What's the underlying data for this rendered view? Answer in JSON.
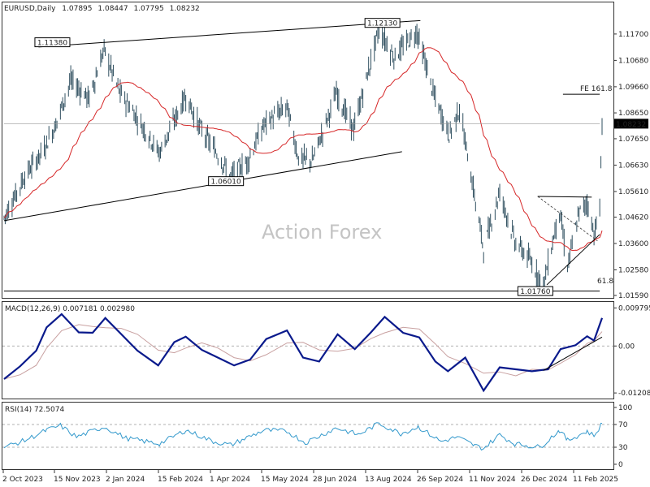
{
  "header": {
    "symbol": "EURUSD,Daily",
    "open": "1.07895",
    "high": "1.08447",
    "low": "1.07795",
    "close": "1.08232"
  },
  "watermark": "Action Forex",
  "colors": {
    "candle": "#2f4f5f",
    "ma": "#d62728",
    "trendline": "#000000",
    "macd": "#0a1a8c",
    "signal": "#c8a0a0",
    "rsi": "#3399cc",
    "grid": "#bbbbbb",
    "price_tag_bg": "#000000"
  },
  "chart_data": [
    {
      "type": "candlestick",
      "panel": "price",
      "ylim": [
        1.0159,
        1.1245
      ],
      "y_ticks": [
        "1.11700",
        "1.10680",
        "1.09660",
        "1.08650",
        "1.07650",
        "1.06630",
        "1.05610",
        "1.04620",
        "1.03600",
        "1.02580",
        "1.01590"
      ],
      "current_price": "1.08232",
      "moving_average": "red",
      "series_anchor_points": [
        [
          "2023-10-02",
          1.046
        ],
        [
          "2023-10-20",
          1.062
        ],
        [
          "2023-11-05",
          1.072
        ],
        [
          "2023-11-15",
          1.081
        ],
        [
          "2023-11-29",
          1.099
        ],
        [
          "2023-12-15",
          1.092
        ],
        [
          "2023-12-28",
          1.111
        ],
        [
          "2024-01-10",
          1.095
        ],
        [
          "2024-01-25",
          1.085
        ],
        [
          "2024-02-14",
          1.071
        ],
        [
          "2024-03-08",
          1.093
        ],
        [
          "2024-03-20",
          1.081
        ],
        [
          "2024-04-01",
          1.073
        ],
        [
          "2024-04-16",
          1.062
        ],
        [
          "2024-05-01",
          1.068
        ],
        [
          "2024-05-15",
          1.082
        ],
        [
          "2024-06-04",
          1.089
        ],
        [
          "2024-06-14",
          1.069
        ],
        [
          "2024-06-26",
          1.068
        ],
        [
          "2024-07-17",
          1.094
        ],
        [
          "2024-08-01",
          1.08
        ],
        [
          "2024-08-23",
          1.119
        ],
        [
          "2024-09-05",
          1.108
        ],
        [
          "2024-09-25",
          1.118
        ],
        [
          "2024-10-10",
          1.093
        ],
        [
          "2024-10-23",
          1.078
        ],
        [
          "2024-11-01",
          1.088
        ],
        [
          "2024-11-15",
          1.052
        ],
        [
          "2024-11-22",
          1.034
        ],
        [
          "2024-12-06",
          1.056
        ],
        [
          "2024-12-19",
          1.037
        ],
        [
          "2025-01-02",
          1.029
        ],
        [
          "2025-01-13",
          1.02
        ],
        [
          "2025-01-27",
          1.049
        ],
        [
          "2025-02-03",
          1.027
        ],
        [
          "2025-02-13",
          1.048
        ],
        [
          "2025-02-20",
          1.052
        ],
        [
          "2025-02-26",
          1.04
        ],
        [
          "2025-03-03",
          1.049
        ],
        [
          "2025-03-05",
          1.082
        ]
      ],
      "annotations": [
        {
          "label": "1.11380",
          "value": 1.1138
        },
        {
          "label": "1.12130",
          "value": 1.1213
        },
        {
          "label": "1.06010",
          "value": 1.0601
        },
        {
          "label": "1.01760",
          "value": 1.0176
        },
        {
          "label": "FE 161.8",
          "value": 1.094
        },
        {
          "label": "61.8",
          "value": 1.0197
        }
      ],
      "lines": [
        {
          "name": "upper channel",
          "from": [
            "2023-11-01",
            1.112
          ],
          "to": [
            "2024-09-28",
            1.1222
          ]
        },
        {
          "name": "lower channel",
          "from": [
            "2023-10-02",
            1.0448
          ],
          "to": [
            "2024-09-12",
            1.0715
          ]
        },
        {
          "name": "FE 161.8 level",
          "from": [
            "2025-01-30",
            1.0937
          ],
          "to": [
            "2025-03-03",
            1.0937
          ]
        },
        {
          "name": "61.8 level",
          "from": [
            "2023-10-02",
            1.0176
          ],
          "to": [
            "2025-03-03",
            1.0176
          ]
        },
        {
          "name": "current price",
          "from": [
            "2023-10-02",
            1.0823
          ],
          "to": [
            "2025-03-03",
            1.0823
          ]
        },
        {
          "name": "triangle top",
          "from": [
            "2025-01-08",
            1.0542
          ],
          "to": [
            "2025-02-24",
            1.0539
          ]
        },
        {
          "name": "triangle support",
          "from": [
            "2025-01-16",
            1.02
          ],
          "to": [
            "2025-03-03",
            1.0395
          ]
        }
      ]
    },
    {
      "type": "line",
      "panel": "macd",
      "label": "MACD(12,26,9) 0.007181 0.002980",
      "ylim": [
        -0.0131,
        0.0105
      ],
      "y_ticks": [
        "0.009795",
        "0.00",
        "-0.012081"
      ],
      "series": [
        {
          "name": "MACD",
          "values": [
            [
              "2023-10-02",
              -0.0085
            ],
            [
              "2023-10-16",
              -0.0052
            ],
            [
              "2023-10-30",
              -0.0012
            ],
            [
              "2023-11-08",
              0.0048
            ],
            [
              "2023-11-21",
              0.0082
            ],
            [
              "2023-12-06",
              0.0035
            ],
            [
              "2023-12-18",
              0.0034
            ],
            [
              "2023-12-29",
              0.0072
            ],
            [
              "2024-01-12",
              0.003
            ],
            [
              "2024-01-26",
              -0.0012
            ],
            [
              "2024-02-13",
              -0.005
            ],
            [
              "2024-02-27",
              0.001
            ],
            [
              "2024-03-08",
              0.0024
            ],
            [
              "2024-03-22",
              -0.001
            ],
            [
              "2024-04-05",
              -0.003
            ],
            [
              "2024-04-19",
              -0.005
            ],
            [
              "2024-05-03",
              -0.0035
            ],
            [
              "2024-05-17",
              0.0018
            ],
            [
              "2024-06-04",
              0.004
            ],
            [
              "2024-06-18",
              -0.003
            ],
            [
              "2024-07-02",
              -0.004
            ],
            [
              "2024-07-18",
              0.003
            ],
            [
              "2024-08-02",
              -0.0008
            ],
            [
              "2024-08-16",
              0.0035
            ],
            [
              "2024-08-28",
              0.0075
            ],
            [
              "2024-09-13",
              0.0034
            ],
            [
              "2024-09-27",
              0.0022
            ],
            [
              "2024-10-11",
              -0.004
            ],
            [
              "2024-10-22",
              -0.0065
            ],
            [
              "2024-11-06",
              -0.003
            ],
            [
              "2024-11-22",
              -0.0115
            ],
            [
              "2024-12-06",
              -0.0055
            ],
            [
              "2024-12-20",
              -0.006
            ],
            [
              "2025-01-03",
              -0.0065
            ],
            [
              "2025-01-17",
              -0.006
            ],
            [
              "2025-01-28",
              -0.0008
            ],
            [
              "2025-02-10",
              0.0002
            ],
            [
              "2025-02-20",
              0.0025
            ],
            [
              "2025-02-26",
              0.0014
            ],
            [
              "2025-03-05",
              0.0072
            ]
          ]
        },
        {
          "name": "Signal",
          "values": "smoothed MACD (0.002980 latest)"
        }
      ]
    },
    {
      "type": "line",
      "panel": "rsi",
      "label": "RSI(14) 72.5074",
      "ylim": [
        0,
        100
      ],
      "y_ticks": [
        "100",
        "70",
        "30",
        "0"
      ],
      "levels": [
        70,
        30
      ],
      "series": [
        {
          "name": "RSI",
          "values": [
            [
              "2023-10-02",
              30
            ],
            [
              "2023-10-20",
              42
            ],
            [
              "2023-11-08",
              60
            ],
            [
              "2023-11-20",
              68
            ],
            [
              "2023-12-04",
              48
            ],
            [
              "2023-12-28",
              66
            ],
            [
              "2024-01-16",
              46
            ],
            [
              "2024-02-14",
              36
            ],
            [
              "2024-03-08",
              60
            ],
            [
              "2024-04-01",
              40
            ],
            [
              "2024-04-16",
              34
            ],
            [
              "2024-05-15",
              60
            ],
            [
              "2024-06-04",
              58
            ],
            [
              "2024-06-20",
              38
            ],
            [
              "2024-07-17",
              64
            ],
            [
              "2024-08-05",
              52
            ],
            [
              "2024-08-23",
              72
            ],
            [
              "2024-09-11",
              54
            ],
            [
              "2024-09-26",
              66
            ],
            [
              "2024-10-16",
              40
            ],
            [
              "2024-10-30",
              48
            ],
            [
              "2024-11-14",
              33
            ],
            [
              "2024-11-22",
              28
            ],
            [
              "2024-12-06",
              52
            ],
            [
              "2024-12-19",
              36
            ],
            [
              "2025-01-10",
              30
            ],
            [
              "2025-01-27",
              60
            ],
            [
              "2025-02-03",
              42
            ],
            [
              "2025-02-20",
              58
            ],
            [
              "2025-02-26",
              50
            ],
            [
              "2025-03-05",
              72
            ]
          ]
        }
      ]
    }
  ],
  "x_axis": {
    "labels": [
      "2 Oct 2023",
      "15 Nov 2023",
      "2 Jan 2024",
      "15 Feb 2024",
      "1 Apr 2024",
      "15 May 2024",
      "28 Jun 2024",
      "13 Aug 2024",
      "26 Sep 2024",
      "11 Nov 2024",
      "26 Dec 2024",
      "11 Feb 2025"
    ]
  }
}
